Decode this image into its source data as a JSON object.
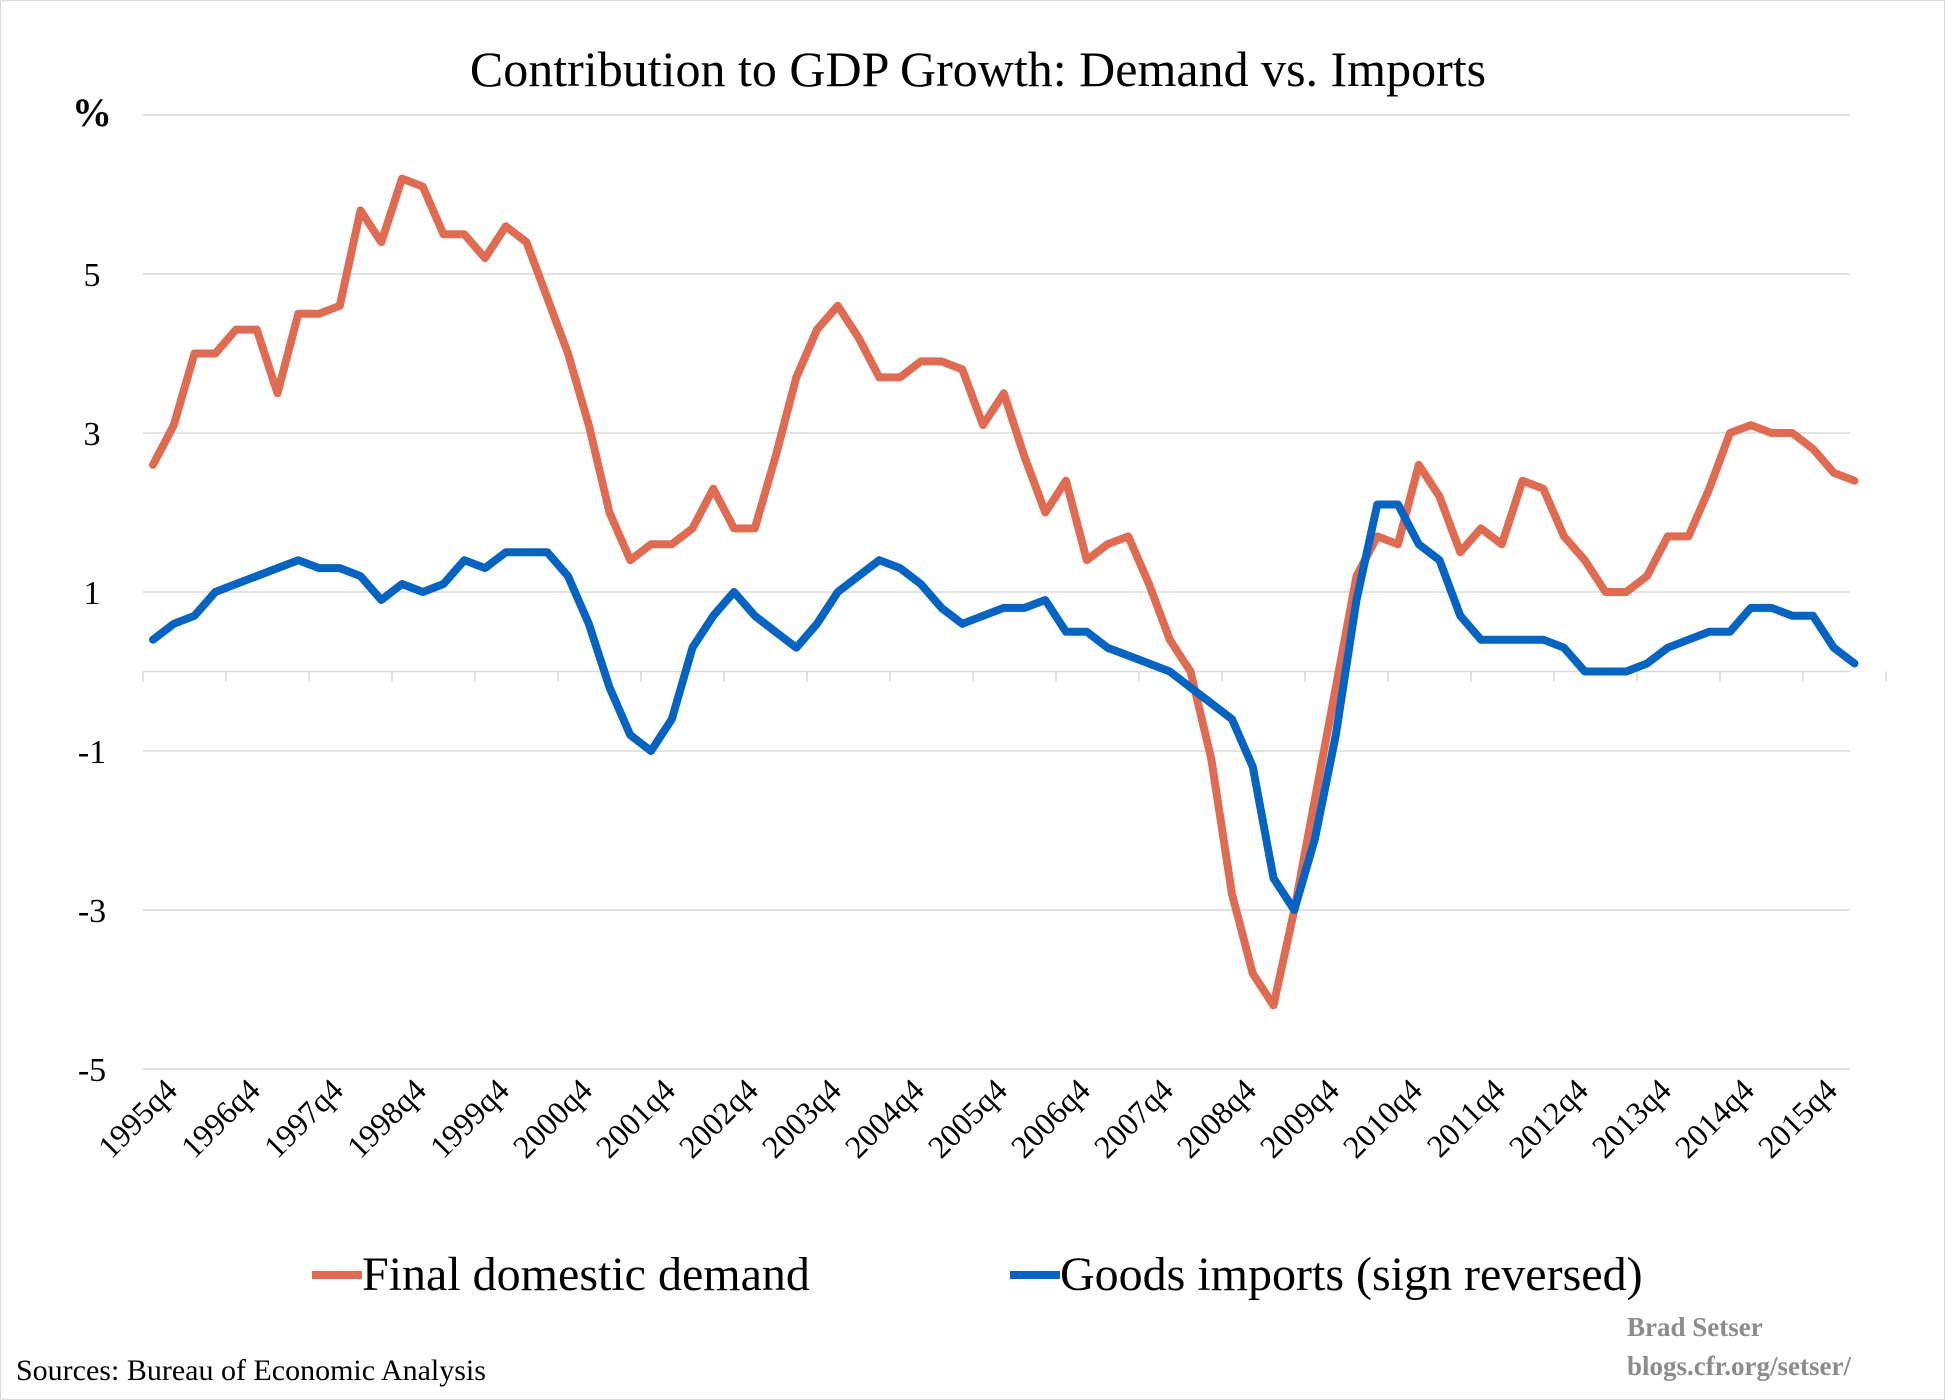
{
  "chart_data": {
    "type": "line",
    "title": "Contribution to GDP Growth: Demand vs. Imports",
    "ylabel": "%",
    "ylim": [
      -5,
      7
    ],
    "yticks": [
      "-5",
      "-3",
      "-1",
      "1",
      "3",
      "5"
    ],
    "ytick_values": [
      -5,
      -3,
      -1,
      1,
      3,
      5
    ],
    "grid": true,
    "legend_position": "bottom",
    "x_tick_labels": [
      "1995q4",
      "1996q4",
      "1997q4",
      "1998q4",
      "1999q4",
      "2000q4",
      "2001q4",
      "2002q4",
      "2003q4",
      "2004q4",
      "2005q4",
      "2006q4",
      "2007q4",
      "2008q4",
      "2009q4",
      "2010q4",
      "2011q4",
      "2012q4",
      "2013q4",
      "2014q4",
      "2015q4"
    ],
    "x_start": "1995q4",
    "series": [
      {
        "name": "Final domestic demand",
        "color": "#E06B53",
        "values": [
          2.6,
          3.1,
          4.0,
          4.0,
          4.3,
          4.3,
          3.5,
          4.5,
          4.5,
          4.6,
          5.8,
          5.4,
          6.2,
          6.1,
          5.5,
          5.5,
          5.2,
          5.6,
          5.4,
          4.7,
          4.0,
          3.1,
          2.0,
          1.4,
          1.6,
          1.6,
          1.8,
          2.3,
          1.8,
          1.8,
          2.7,
          3.7,
          4.3,
          4.6,
          4.2,
          3.7,
          3.7,
          3.9,
          3.9,
          3.8,
          3.1,
          3.5,
          2.7,
          2.0,
          2.4,
          1.4,
          1.6,
          1.7,
          1.1,
          0.4,
          0.0,
          -1.1,
          -2.8,
          -3.8,
          -4.2,
          -3.0,
          -1.6,
          -0.2,
          1.2,
          1.7,
          1.6,
          2.6,
          2.2,
          1.5,
          1.8,
          1.6,
          2.4,
          2.3,
          1.7,
          1.4,
          1.0,
          1.0,
          1.2,
          1.7,
          1.7,
          2.3,
          3.0,
          3.1,
          3.0,
          3.0,
          2.8,
          2.5,
          2.4
        ]
      },
      {
        "name": "Goods imports (sign reversed)",
        "color": "#0563C1",
        "values": [
          0.4,
          0.6,
          0.7,
          1.0,
          1.1,
          1.2,
          1.3,
          1.4,
          1.3,
          1.3,
          1.2,
          0.9,
          1.1,
          1.0,
          1.1,
          1.4,
          1.3,
          1.5,
          1.5,
          1.5,
          1.2,
          0.6,
          -0.2,
          -0.8,
          -1.0,
          -0.6,
          0.3,
          0.7,
          1.0,
          0.7,
          0.5,
          0.3,
          0.6,
          1.0,
          1.2,
          1.4,
          1.3,
          1.1,
          0.8,
          0.6,
          0.7,
          0.8,
          0.8,
          0.9,
          0.5,
          0.5,
          0.3,
          0.2,
          0.1,
          0.0,
          -0.2,
          -0.4,
          -0.6,
          -1.2,
          -2.6,
          -3.0,
          -2.1,
          -0.8,
          0.9,
          2.1,
          2.1,
          1.6,
          1.4,
          0.7,
          0.4,
          0.4,
          0.4,
          0.4,
          0.3,
          0.0,
          0.0,
          0.0,
          0.1,
          0.3,
          0.4,
          0.5,
          0.5,
          0.8,
          0.8,
          0.7,
          0.7,
          0.3,
          0.1
        ]
      }
    ]
  },
  "source_note": "Sources: Bureau of Economic Analysis",
  "credit": {
    "name": "Brad Setser",
    "url": "blogs.cfr.org/setser/"
  }
}
